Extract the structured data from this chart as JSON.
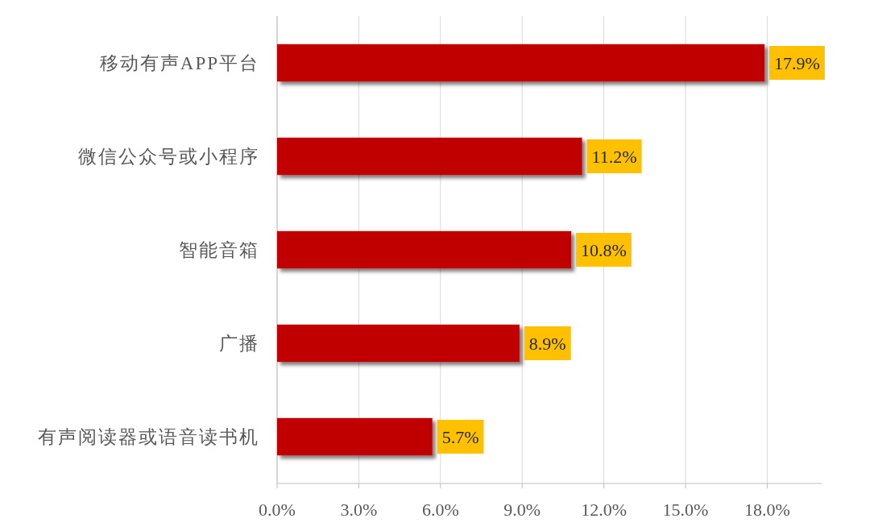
{
  "chart_data": {
    "type": "bar",
    "orientation": "horizontal",
    "categories": [
      "移动有声APP平台",
      "微信公众号或小程序",
      "智能音箱",
      "广播",
      "有声阅读器或语音读书机"
    ],
    "values": [
      17.9,
      11.2,
      10.8,
      8.9,
      5.7
    ],
    "color": "#c00000",
    "value_labels": [
      "17.9%",
      "11.2%",
      "10.8%",
      "8.9%",
      "5.7%"
    ],
    "xlim": [
      0,
      20
    ],
    "xticks": [
      {
        "value": 0,
        "label": "0.0%"
      },
      {
        "value": 3,
        "label": "3.0%"
      },
      {
        "value": 6,
        "label": "6.0%"
      },
      {
        "value": 9,
        "label": "9.0%"
      },
      {
        "value": 12,
        "label": "12.0%"
      },
      {
        "value": 15,
        "label": "15.0%"
      },
      {
        "value": 18,
        "label": "18.0%"
      }
    ],
    "grid": "x"
  }
}
